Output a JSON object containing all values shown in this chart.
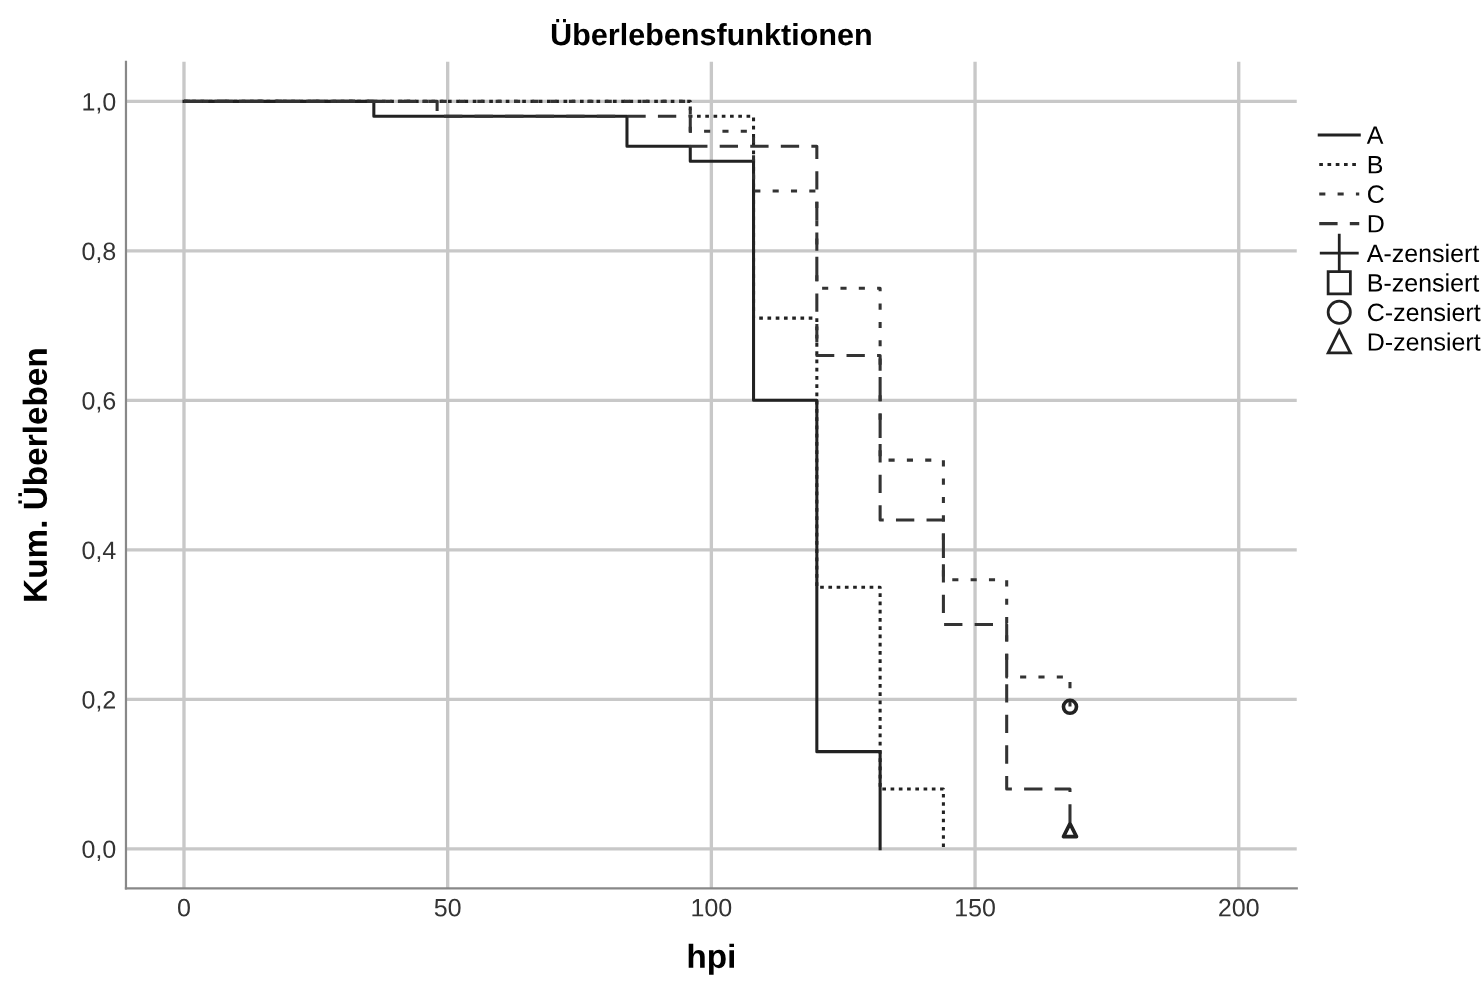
{
  "chart_data": {
    "type": "step",
    "title": "Überlebensfunktionen",
    "xlabel": "hpi",
    "ylabel": "Kum. Überleben",
    "xlim": [
      -11,
      211
    ],
    "xticks": [
      0,
      50,
      100,
      150,
      200
    ],
    "ylim": [
      -0.053,
      1.053
    ],
    "yticks": [
      {
        "value": 0,
        "label": "0,0"
      },
      {
        "value": 0.2,
        "label": "0,2"
      },
      {
        "value": 0.4,
        "label": "0,4"
      },
      {
        "value": 0.6,
        "label": "0,6"
      },
      {
        "value": 0.8,
        "label": "0,8"
      },
      {
        "value": 1,
        "label": "1,0"
      }
    ],
    "grid": true,
    "legend": "right",
    "series": [
      {
        "name": "A",
        "color": "#222222",
        "line_style": "solid",
        "x": [
          0,
          36,
          84,
          96,
          108,
          120,
          132
        ],
        "values": [
          1,
          0.98,
          0.94,
          0.92,
          0.6,
          0.13,
          0
        ]
      },
      {
        "name": "B",
        "color": "#222222",
        "line_style": "dotted",
        "x": [
          0,
          96,
          108,
          120,
          132,
          144
        ],
        "values": [
          1,
          0.98,
          0.71,
          0.35,
          0.08,
          0
        ]
      },
      {
        "name": "C",
        "color": "#333333",
        "line_style": "dashdot",
        "x": [
          0,
          96,
          108,
          120,
          132,
          144,
          156,
          168
        ],
        "values": [
          1,
          0.96,
          0.88,
          0.75,
          0.52,
          0.36,
          0.23,
          0.19
        ]
      },
      {
        "name": "D",
        "color": "#333333",
        "line_style": "dashed",
        "x": [
          0,
          48,
          96,
          120,
          132,
          144,
          156,
          168
        ],
        "values": [
          1,
          0.98,
          0.94,
          0.66,
          0.44,
          0.3,
          0.08,
          0.025
        ]
      },
      {
        "name": "A-zensiert",
        "type": "scatter",
        "marker": "cross",
        "color": "#222222"
      },
      {
        "name": "B-zensiert",
        "type": "scatter",
        "marker": "square",
        "color": "#222222"
      },
      {
        "name": "C-zensiert",
        "type": "scatter",
        "marker": "circle",
        "color": "#222222",
        "x": [
          168
        ],
        "values": [
          0.19
        ]
      },
      {
        "name": "D-zensiert",
        "type": "scatter",
        "marker": "triangle",
        "color": "#222222",
        "x": [
          168
        ],
        "values": [
          0.025
        ]
      }
    ]
  }
}
